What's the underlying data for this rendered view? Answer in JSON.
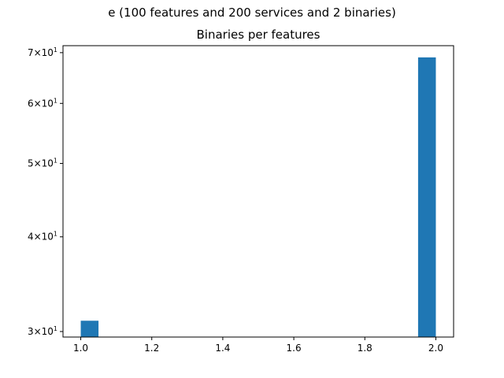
{
  "chart_data": {
    "type": "bar",
    "suptitle": "e (100 features and 200 services and 2 binaries)",
    "title": "Binaries per features",
    "xlabel": "",
    "ylabel": "",
    "xlim": [
      0.95,
      2.05
    ],
    "ylim": [
      29.5,
      71.5
    ],
    "yscale": "log",
    "grid": false,
    "x_ticks": [
      {
        "value": 1.0,
        "label": "1.0"
      },
      {
        "value": 1.2,
        "label": "1.2"
      },
      {
        "value": 1.4,
        "label": "1.4"
      },
      {
        "value": 1.6,
        "label": "1.6"
      },
      {
        "value": 1.8,
        "label": "1.8"
      },
      {
        "value": 2.0,
        "label": "2.0"
      }
    ],
    "y_ticks": [
      {
        "value": 30,
        "mant": "3",
        "exp": "1"
      },
      {
        "value": 40,
        "mant": "4",
        "exp": "1"
      },
      {
        "value": 50,
        "mant": "5",
        "exp": "1"
      },
      {
        "value": 60,
        "mant": "6",
        "exp": "1"
      },
      {
        "value": 70,
        "mant": "7",
        "exp": "1"
      }
    ],
    "bars": [
      {
        "x0": 1.0,
        "x1": 1.05,
        "value": 31
      },
      {
        "x0": 1.95,
        "x1": 2.0,
        "value": 69
      }
    ],
    "bar_color": "#1f77b4"
  }
}
